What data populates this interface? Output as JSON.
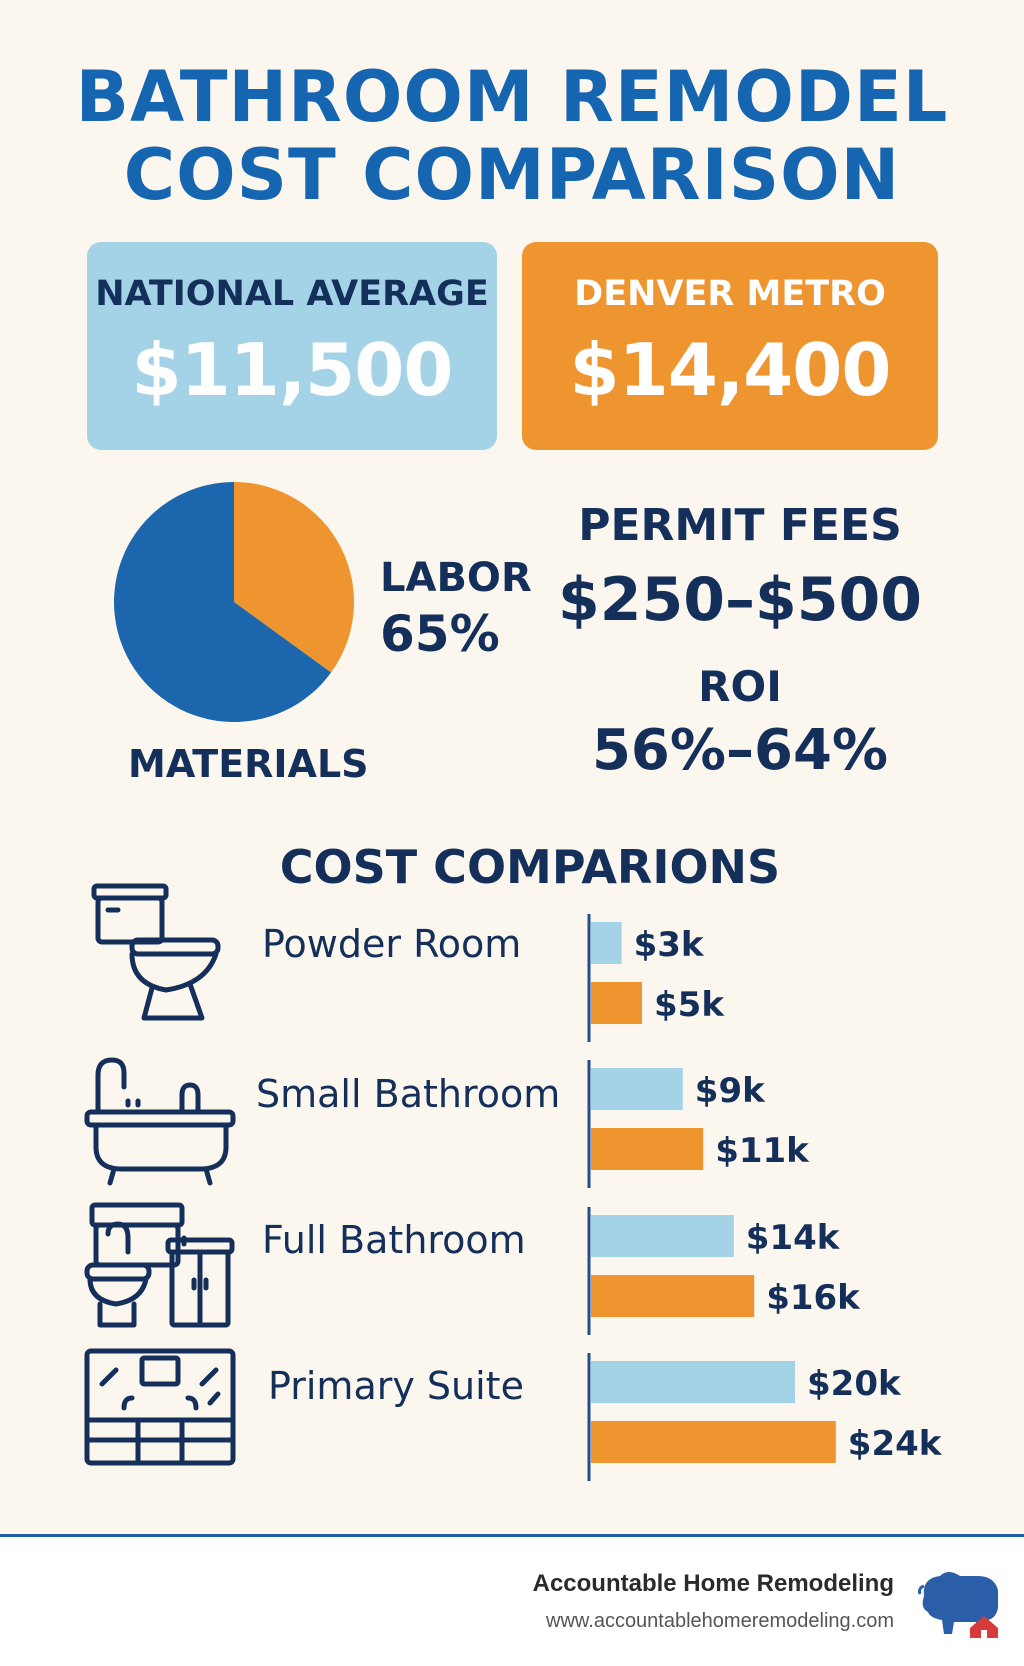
{
  "title_line1": "BATHROOM REMODEL",
  "title_line2": "COST COMPARISON",
  "cards": {
    "national": {
      "label": "NATIONAL AVERAGE",
      "value": "$11,500"
    },
    "denver": {
      "label": "DENVER METRO",
      "value": "$14,400"
    }
  },
  "pie": {
    "labor_label": "LABOR",
    "labor_value": "65%",
    "materials_label": "MATERIALS"
  },
  "permit": {
    "label": "PERMIT FEES",
    "value": "$250–$500"
  },
  "roi": {
    "label": "ROI",
    "value": "56%–64%"
  },
  "section_title": "COST COMPARIONS",
  "colors": {
    "national": "#a4d3e8",
    "denver": "#ef9530",
    "navy": "#14305a",
    "blue": "#1565b0",
    "pie_blue": "#1b66ad",
    "pie_orange": "#ef9530",
    "background": "#fbf6ee"
  },
  "chart_data": [
    {
      "type": "pie",
      "slices": [
        {
          "label": "LABOR",
          "value": 65
        },
        {
          "label": "MATERIALS",
          "value": 35
        }
      ]
    },
    {
      "type": "bar",
      "orientation": "horizontal",
      "categories": [
        "Powder Room",
        "Small Bathroom",
        "Full Bathroom",
        "Primary Suite"
      ],
      "units": "k USD",
      "series": [
        {
          "values": [
            3,
            9,
            14,
            20
          ],
          "labels": [
            "$3k",
            "$9k",
            "$14k",
            "$20k"
          ]
        },
        {
          "values": [
            5,
            11,
            16,
            24
          ],
          "labels": [
            "$5k",
            "$11k",
            "$16k",
            "$24k"
          ]
        }
      ]
    }
  ],
  "icons": [
    "toilet-icon",
    "bathtub-icon",
    "toilet-vanity-icon",
    "suite-icon"
  ],
  "footer": {
    "brand": "Accountable Home Remodeling",
    "url": "www.accountablehomeremodeling.com"
  }
}
